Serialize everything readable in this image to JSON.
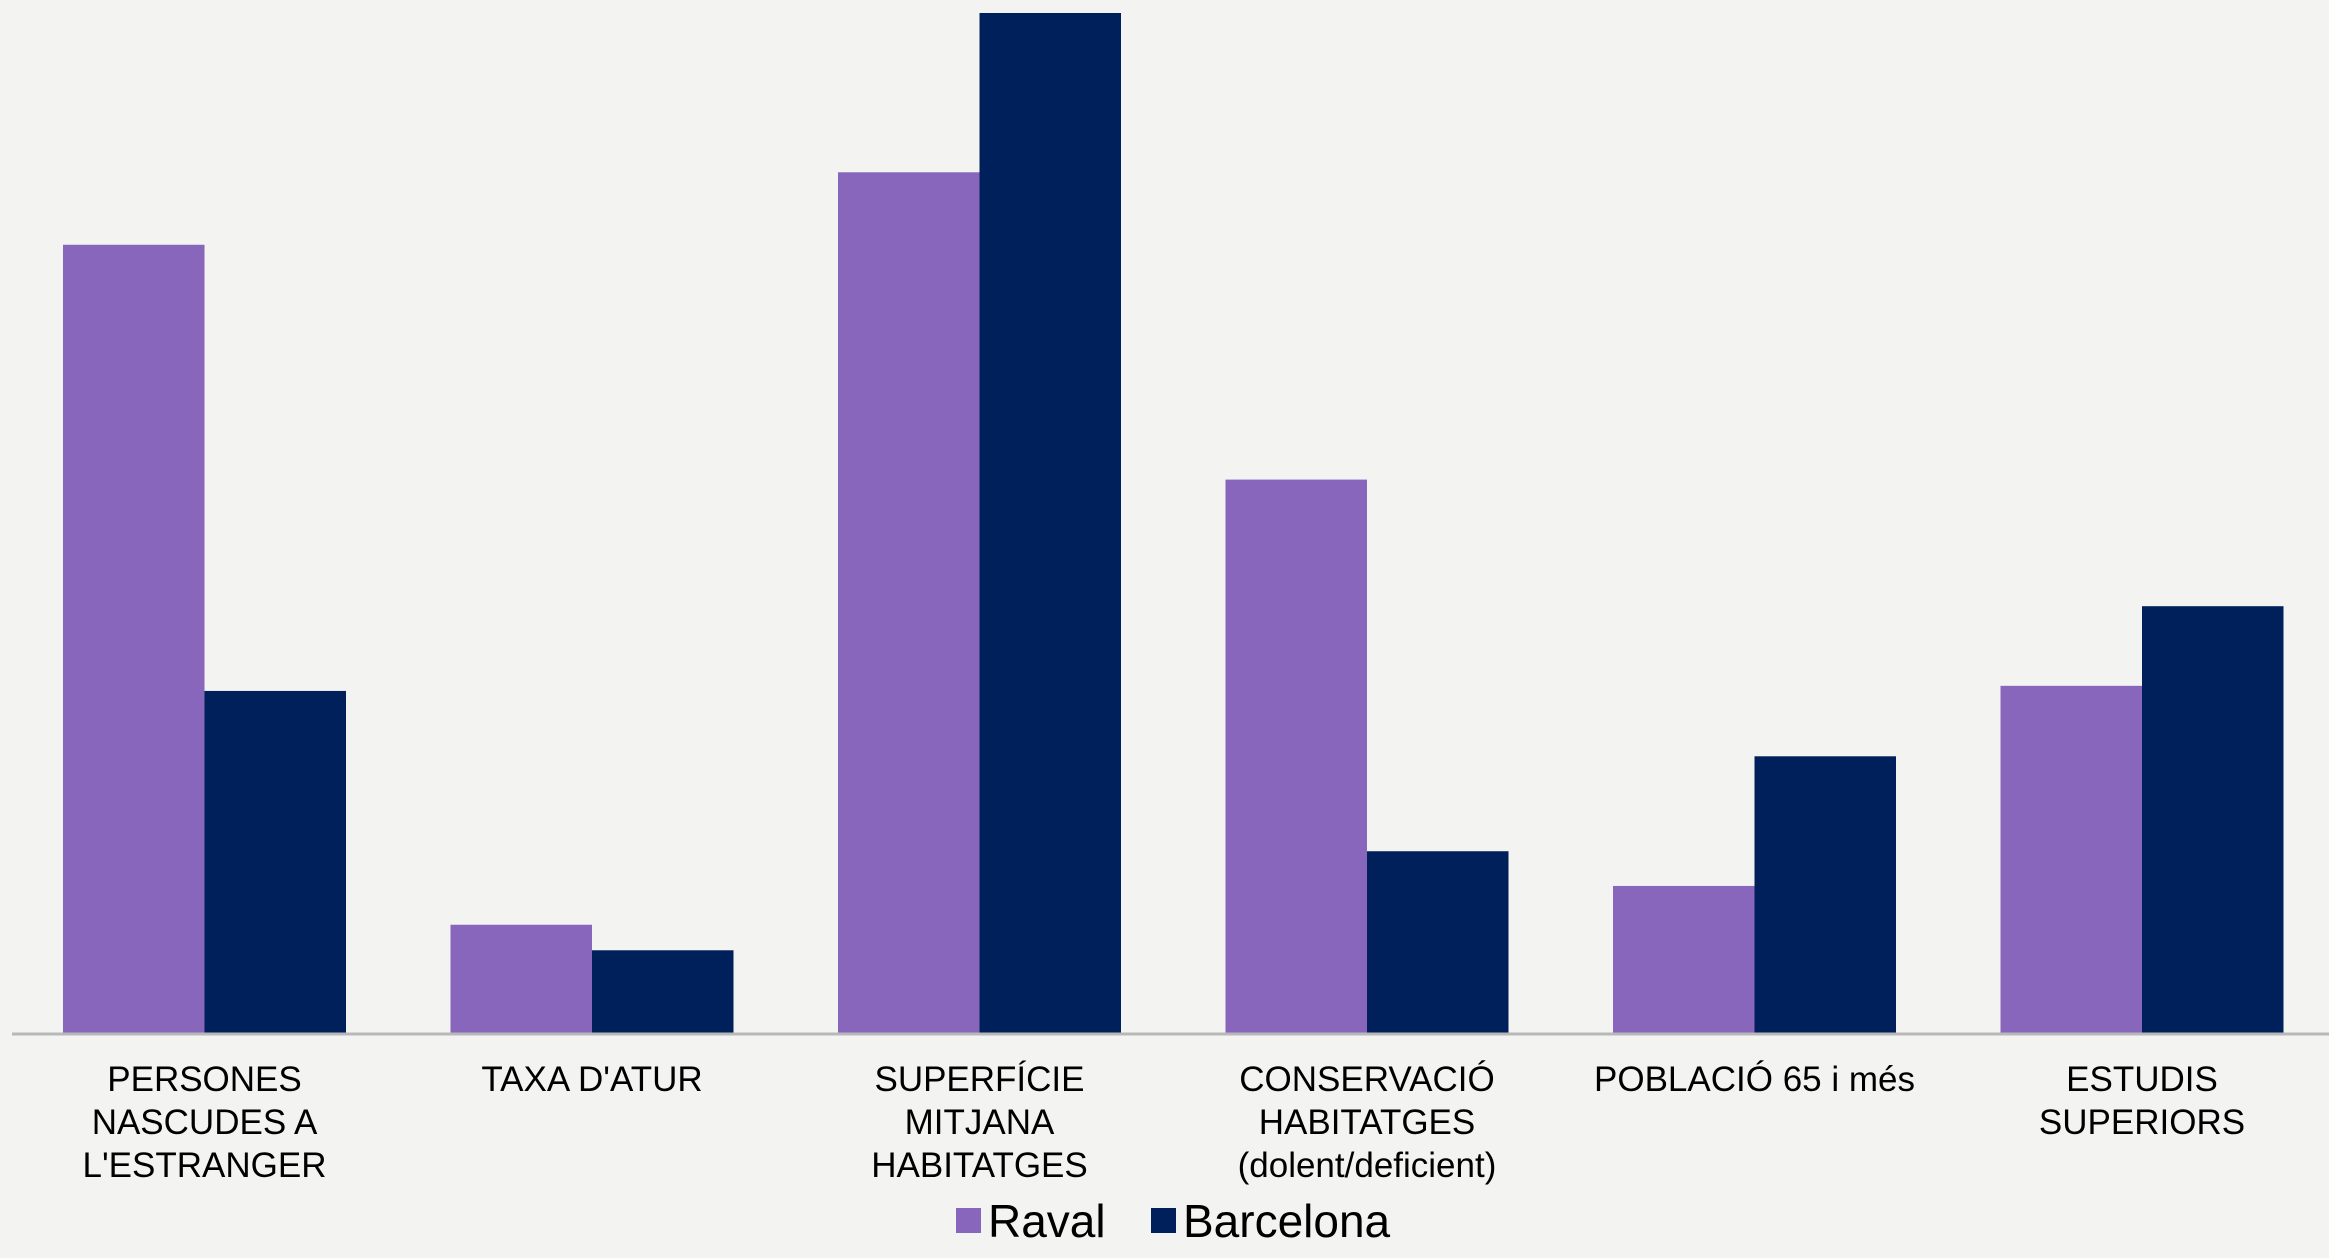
{
  "chart_data": {
    "type": "bar",
    "title": "",
    "xlabel": "",
    "ylabel": "",
    "ylim": [
      0,
      100
    ],
    "grid": false,
    "legend_position": "bottom",
    "categories": [
      [
        "PERSONES",
        "NASCUDES A",
        "L'ESTRANGER"
      ],
      [
        "TAXA D'ATUR"
      ],
      [
        "SUPERFÍCIE",
        "MITJANA",
        "HABITATGES"
      ],
      [
        "CONSERVACIÓ",
        "HABITATGES",
        "(dolent/deficient)"
      ],
      [
        "POBLACIÓ 65 i més"
      ],
      [
        "ESTUDIS",
        "SUPERIORS"
      ]
    ],
    "series": [
      {
        "name": "Raval",
        "color": "#8866bb",
        "values": [
          77.3,
          10.7,
          84.4,
          54.3,
          14.5,
          34.1
        ]
      },
      {
        "name": "Barcelona",
        "color": "#00205c",
        "values": [
          33.6,
          8.2,
          100,
          17.9,
          27.2,
          41.9
        ]
      }
    ]
  }
}
